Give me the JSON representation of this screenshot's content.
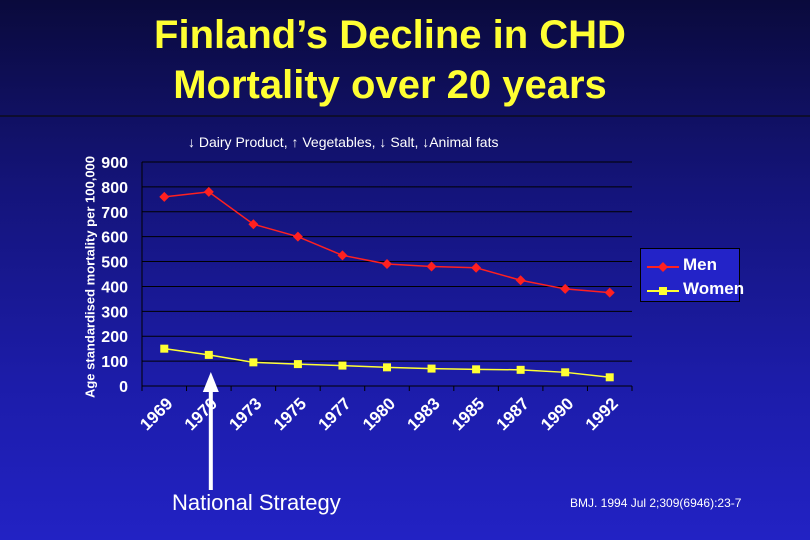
{
  "title_line1": "Finland’s Decline in CHD",
  "title_line2": "Mortality over 20 years",
  "annotation_top": "↓ Dairy Product, ↑ Vegetables, ↓ Salt, ↓Animal fats",
  "annotation_arrow": "National Strategy",
  "source": "BMJ. 1994 Jul 2;309(6946):23-7",
  "colors": {
    "men": "#ff2020",
    "women": "#ffff33",
    "title": "#ffff33",
    "text": "#ffffff"
  },
  "chart_data": {
    "type": "line",
    "title": "Finland’s Decline in CHD Mortality over 20 years",
    "ylabel": "Age standardised mortality per 100,000",
    "xlabel": "",
    "categories": [
      "1969",
      "1970",
      "1973",
      "1975",
      "1977",
      "1980",
      "1983",
      "1985",
      "1987",
      "1990",
      "1992"
    ],
    "ylim": [
      0,
      900
    ],
    "yticks": [
      0,
      100,
      200,
      300,
      400,
      500,
      600,
      700,
      800,
      900
    ],
    "grid": "horizontal",
    "legend_position": "right",
    "series": [
      {
        "name": "Men",
        "marker": "diamond",
        "values": [
          760,
          780,
          650,
          600,
          525,
          490,
          480,
          475,
          425,
          390,
          375
        ]
      },
      {
        "name": "Women",
        "marker": "square",
        "values": [
          150,
          125,
          95,
          88,
          82,
          75,
          70,
          67,
          65,
          55,
          35
        ]
      }
    ]
  }
}
